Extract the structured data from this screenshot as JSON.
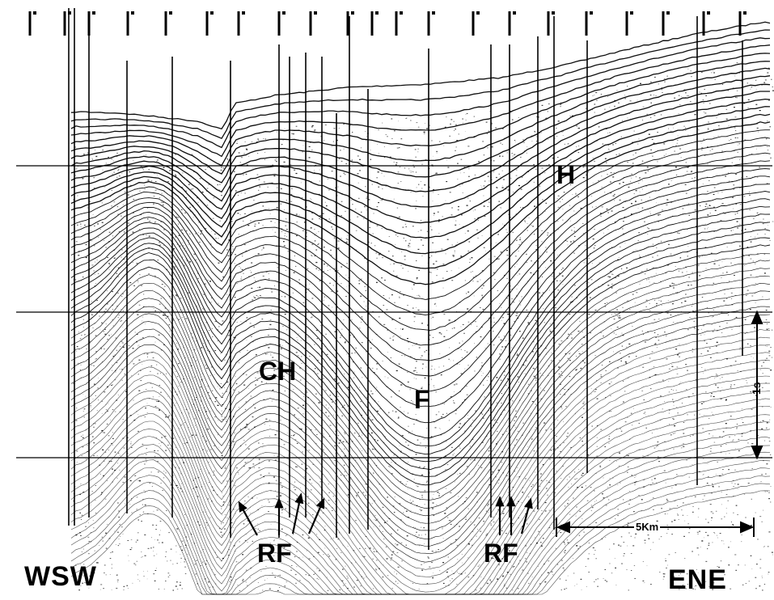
{
  "labels": {
    "west": "WSW",
    "east": "ENE",
    "ch": "CH",
    "f": "F",
    "h": "H",
    "rf_left": "RF",
    "rf_right": "RF",
    "scale_horizontal": "5Km",
    "scale_vertical": "1s"
  },
  "colors": {
    "ink": "#000000",
    "paper": "#ffffff"
  },
  "annotations": {
    "arrows_left_group": 4,
    "arrows_right_group": 3
  }
}
